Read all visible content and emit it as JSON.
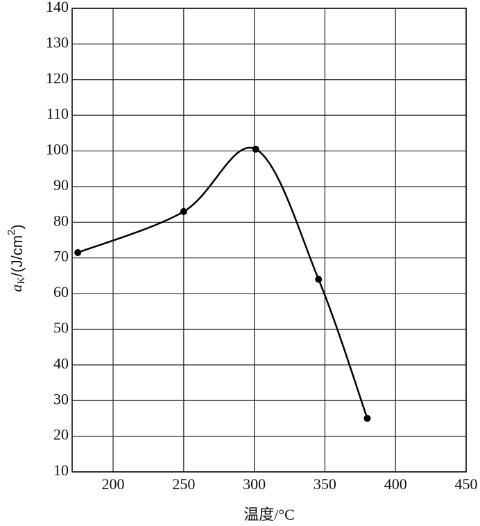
{
  "chart_data": {
    "type": "line",
    "x": [
      175,
      250,
      301,
      345.5,
      380
    ],
    "values": [
      71.5,
      83,
      100.5,
      64,
      25
    ],
    "color": "#000000",
    "xlim": [
      171,
      450
    ],
    "xticks": [
      200,
      250,
      300,
      350,
      400,
      450
    ],
    "ylim": [
      10,
      140
    ],
    "yticks": [
      10,
      20,
      30,
      40,
      50,
      60,
      70,
      80,
      90,
      100,
      110,
      120,
      130,
      140
    ],
    "grid": true,
    "xlabel": "温度/°C",
    "ylabel_parts": [
      "a",
      "K",
      "/(J/cm",
      "2",
      ")"
    ]
  }
}
